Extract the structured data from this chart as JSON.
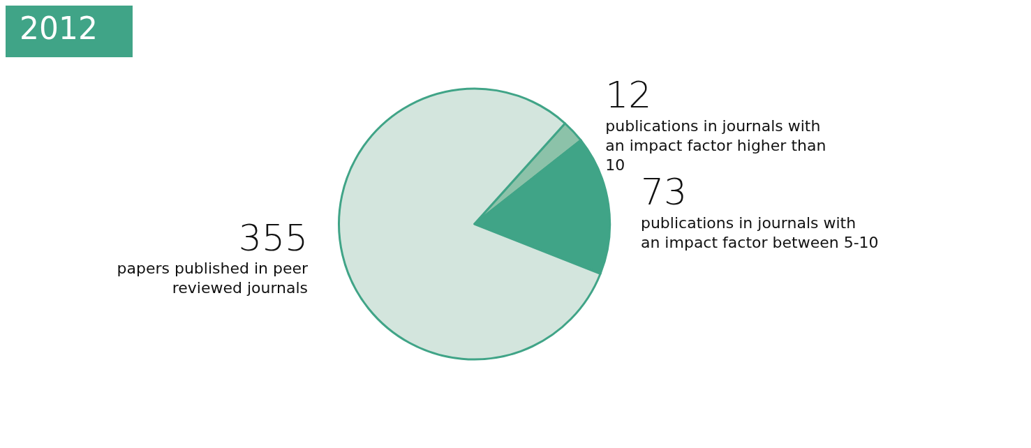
{
  "chart_data": {
    "type": "pie",
    "title": "2012",
    "categories": [
      "publications in journals with an impact factor higher than 10",
      "publications in journals with an impact factor between 5-10",
      "papers published in peer reviewed journals"
    ],
    "values": [
      12,
      73,
      355
    ],
    "colors": [
      "#8cc2a9",
      "#40a487",
      "#d3e5dd"
    ],
    "data_labels": true,
    "legend": false
  }
}
